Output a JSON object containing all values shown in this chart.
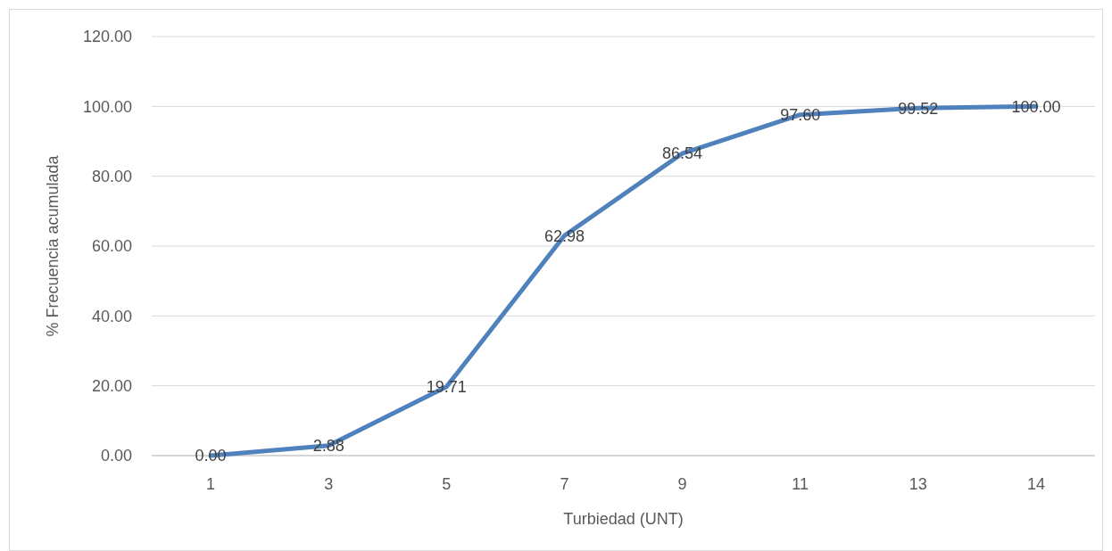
{
  "chart_data": {
    "type": "line",
    "xlabel": "Turbiedad (UNT)",
    "ylabel": "% Frecuencia acumulada",
    "categories": [
      "1",
      "3",
      "5",
      "7",
      "9",
      "11",
      "13",
      "14"
    ],
    "series": [
      {
        "color": "#4f81bd",
        "values": [
          0.0,
          2.88,
          19.71,
          62.98,
          86.54,
          97.6,
          99.52,
          100.0
        ],
        "value_labels": [
          "0.00",
          "2.88",
          "19.71",
          "62.98",
          "86.54",
          "97.60",
          "99.52",
          "100.00"
        ]
      }
    ],
    "ylim": [
      0,
      120
    ],
    "yticks": [
      {
        "value": 0,
        "label": "0.00"
      },
      {
        "value": 20,
        "label": "20.00"
      },
      {
        "value": 40,
        "label": "40.00"
      },
      {
        "value": 60,
        "label": "60.00"
      },
      {
        "value": 80,
        "label": "80.00"
      },
      {
        "value": 100,
        "label": "100.00"
      },
      {
        "value": 120,
        "label": "120.00"
      }
    ],
    "grid": "y",
    "marker": "none",
    "line_style": "solid"
  }
}
